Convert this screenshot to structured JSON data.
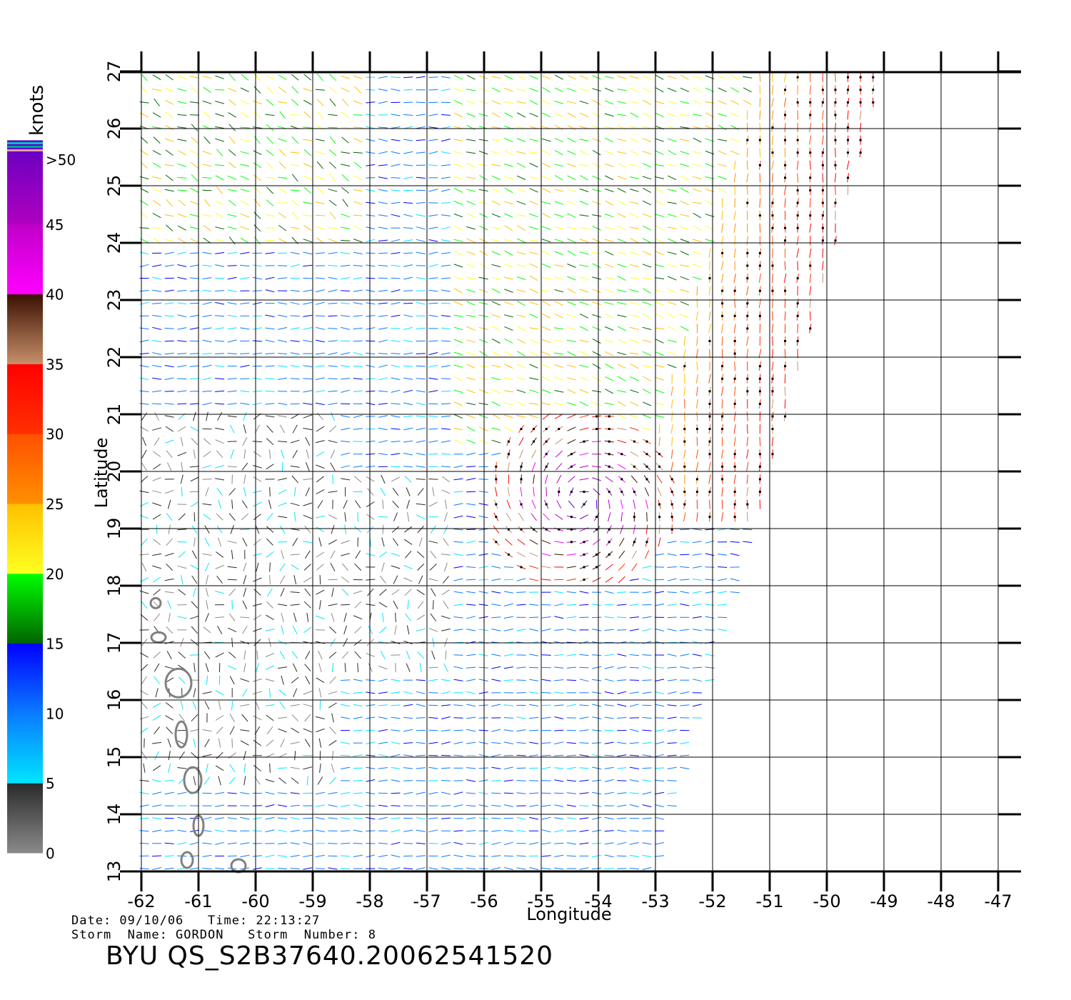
{
  "map": {
    "xlabel": "Longitude",
    "ylabel": "Latitude",
    "lon_range": [
      -62,
      -47
    ],
    "lat_range": [
      13,
      27
    ],
    "lon_ticks": [
      "-62",
      "-61",
      "-60",
      "-59",
      "-58",
      "-57",
      "-56",
      "-55",
      "-54",
      "-53",
      "-52",
      "-51",
      "-50",
      "-49",
      "-48",
      "-47"
    ],
    "lat_ticks": [
      "13",
      "14",
      "15",
      "16",
      "17",
      "18",
      "19",
      "20",
      "21",
      "22",
      "23",
      "24",
      "25",
      "26",
      "27"
    ],
    "swath_edge": [
      [
        -49,
        27
      ],
      [
        -53,
        13
      ]
    ],
    "storm_center": [
      -54.3,
      19.5
    ]
  },
  "legend": {
    "unit": "knots",
    "bands": [
      {
        "label": "0",
        "from": 0,
        "to": 5,
        "colors": [
          "#8a8a8a",
          "#2a2a2a"
        ]
      },
      {
        "label": "5",
        "from": 5,
        "to": 10,
        "colors": [
          "#00e5ff",
          "#0a7bff"
        ]
      },
      {
        "label": "10",
        "from": 10,
        "to": 15,
        "colors": [
          "#0a7bff",
          "#0000ff"
        ]
      },
      {
        "label": "15",
        "from": 15,
        "to": 20,
        "colors": [
          "#006400",
          "#00ff00"
        ]
      },
      {
        "label": "20",
        "from": 20,
        "to": 25,
        "colors": [
          "#ffff20",
          "#ffc000"
        ]
      },
      {
        "label": "25",
        "from": 25,
        "to": 30,
        "colors": [
          "#ff9000",
          "#ff5000"
        ]
      },
      {
        "label": "30",
        "from": 30,
        "to": 35,
        "colors": [
          "#ff3000",
          "#ff0000"
        ]
      },
      {
        "label": "35",
        "from": 35,
        "to": 40,
        "colors": [
          "#c8906a",
          "#3a1000"
        ]
      },
      {
        "label": "40",
        "from": 40,
        "to": 45,
        "colors": [
          "#ff00ff",
          "#c000c8"
        ]
      },
      {
        "label": "45",
        "from": 45,
        "to": 50,
        "colors": [
          "#b000c0",
          "#7000c0"
        ]
      },
      {
        "label": ">50",
        "from": 50,
        "to": 55,
        "colors": [
          "#6a00c8",
          "#5a00c8"
        ]
      }
    ]
  },
  "footer": {
    "line1": "Date: 09/10/06   Time: 22:13:27",
    "line2": "Storm  Name: GORDON   Storm  Number: 8",
    "title": "BYU  QS_S2B37640.20062541520"
  }
}
